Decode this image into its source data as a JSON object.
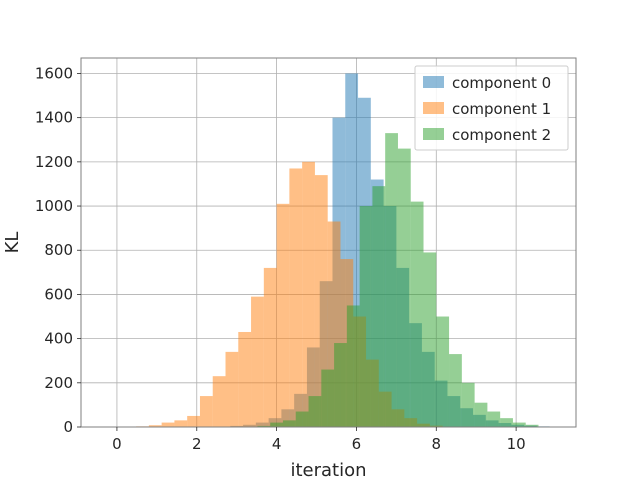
{
  "chart_data": {
    "type": "bar",
    "title": "",
    "xlabel": "iteration",
    "ylabel": "KL",
    "xlim": [
      -0.9,
      11.5
    ],
    "ylim": [
      0,
      1670
    ],
    "xticks": [
      0,
      2,
      4,
      6,
      8,
      10
    ],
    "yticks": [
      0,
      200,
      400,
      600,
      800,
      1000,
      1200,
      1400,
      1600
    ],
    "grid": true,
    "legend_position": "top-right",
    "series": [
      {
        "name": "component 0",
        "color": "#1f77b4",
        "bins": [
          [
            2.84,
            3.16,
            5
          ],
          [
            3.16,
            3.48,
            10
          ],
          [
            3.48,
            3.8,
            20
          ],
          [
            3.8,
            4.12,
            40
          ],
          [
            4.12,
            4.44,
            80
          ],
          [
            4.44,
            4.76,
            150
          ],
          [
            4.76,
            5.08,
            360
          ],
          [
            5.08,
            5.4,
            660
          ],
          [
            5.4,
            5.72,
            1400
          ],
          [
            5.72,
            6.04,
            1600
          ],
          [
            6.04,
            6.36,
            1490
          ],
          [
            6.36,
            6.68,
            1120
          ],
          [
            6.68,
            7.0,
            1000
          ],
          [
            7.0,
            7.32,
            720
          ],
          [
            7.32,
            7.64,
            470
          ],
          [
            7.64,
            7.96,
            340
          ],
          [
            7.96,
            8.28,
            210
          ],
          [
            8.28,
            8.6,
            140
          ],
          [
            8.6,
            8.92,
            85
          ],
          [
            8.92,
            9.24,
            55
          ],
          [
            9.24,
            9.56,
            30
          ],
          [
            9.56,
            9.88,
            18
          ],
          [
            9.88,
            10.2,
            10
          ],
          [
            10.2,
            10.52,
            6
          ],
          [
            10.52,
            10.84,
            3
          ],
          [
            10.84,
            11.16,
            1
          ]
        ]
      },
      {
        "name": "component 1",
        "color": "#ff7f0e",
        "bins": [
          [
            0.48,
            0.8,
            3
          ],
          [
            0.8,
            1.12,
            8
          ],
          [
            1.12,
            1.44,
            20
          ],
          [
            1.44,
            1.76,
            30
          ],
          [
            1.76,
            2.08,
            50
          ],
          [
            2.08,
            2.4,
            140
          ],
          [
            2.4,
            2.72,
            230
          ],
          [
            2.72,
            3.04,
            340
          ],
          [
            3.04,
            3.36,
            430
          ],
          [
            3.36,
            3.68,
            590
          ],
          [
            3.68,
            4.0,
            720
          ],
          [
            4.0,
            4.32,
            1010
          ],
          [
            4.32,
            4.64,
            1170
          ],
          [
            4.64,
            4.96,
            1200
          ],
          [
            4.96,
            5.28,
            1140
          ],
          [
            5.28,
            5.6,
            930
          ],
          [
            5.6,
            5.92,
            760
          ],
          [
            5.92,
            6.24,
            500
          ],
          [
            6.24,
            6.56,
            305
          ],
          [
            6.56,
            6.88,
            160
          ],
          [
            6.88,
            7.2,
            80
          ],
          [
            7.2,
            7.52,
            40
          ],
          [
            7.52,
            7.84,
            15
          ],
          [
            7.84,
            8.16,
            6
          ]
        ]
      },
      {
        "name": "component 2",
        "color": "#2ca02c",
        "bins": [
          [
            3.52,
            3.84,
            5
          ],
          [
            3.84,
            4.16,
            20
          ],
          [
            4.16,
            4.48,
            30
          ],
          [
            4.48,
            4.8,
            70
          ],
          [
            4.8,
            5.12,
            140
          ],
          [
            5.12,
            5.44,
            260
          ],
          [
            5.44,
            5.76,
            380
          ],
          [
            5.76,
            6.08,
            550
          ],
          [
            6.08,
            6.4,
            1000
          ],
          [
            6.4,
            6.72,
            1090
          ],
          [
            6.72,
            7.04,
            1330
          ],
          [
            7.04,
            7.36,
            1260
          ],
          [
            7.36,
            7.68,
            1020
          ],
          [
            7.68,
            8.0,
            790
          ],
          [
            8.0,
            8.32,
            500
          ],
          [
            8.32,
            8.64,
            330
          ],
          [
            8.64,
            8.96,
            200
          ],
          [
            8.96,
            9.28,
            110
          ],
          [
            9.28,
            9.6,
            70
          ],
          [
            9.6,
            9.92,
            40
          ],
          [
            9.92,
            10.24,
            20
          ],
          [
            10.24,
            10.56,
            10
          ]
        ]
      }
    ]
  }
}
